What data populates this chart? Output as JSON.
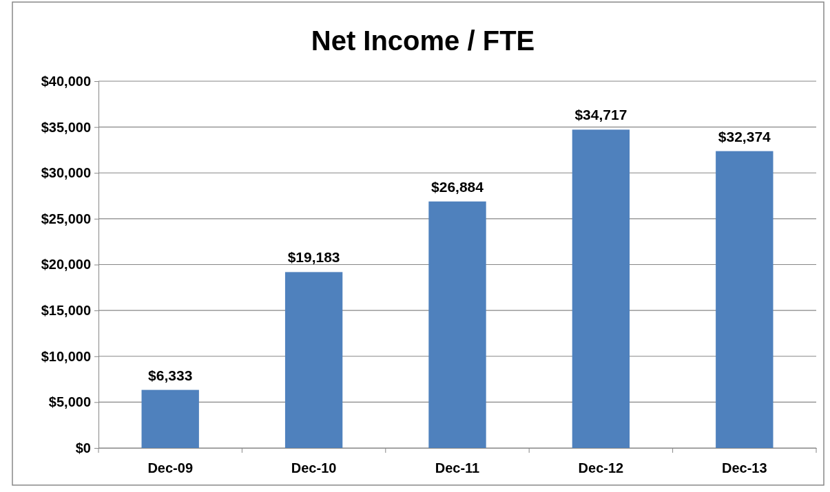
{
  "chart_data": {
    "type": "bar",
    "title": "Net Income / FTE",
    "categories": [
      "Dec-09",
      "Dec-10",
      "Dec-11",
      "Dec-12",
      "Dec-13"
    ],
    "values": [
      6333,
      19183,
      26884,
      34717,
      32374
    ],
    "value_labels": [
      "$6,333",
      "$19,183",
      "$26,884",
      "$34,717",
      "$32,374"
    ],
    "color": "#4f81bd",
    "ylim": [
      0,
      40000
    ],
    "yticks": [
      {
        "value": 0,
        "label": "$0"
      },
      {
        "value": 5000,
        "label": "$5,000"
      },
      {
        "value": 10000,
        "label": "$10,000"
      },
      {
        "value": 15000,
        "label": "$15,000"
      },
      {
        "value": 20000,
        "label": "$20,000"
      },
      {
        "value": 25000,
        "label": "$25,000"
      },
      {
        "value": 30000,
        "label": "$30,000"
      },
      {
        "value": 35000,
        "label": "$35,000"
      },
      {
        "value": 40000,
        "label": "$40,000"
      }
    ],
    "grid": "y"
  }
}
